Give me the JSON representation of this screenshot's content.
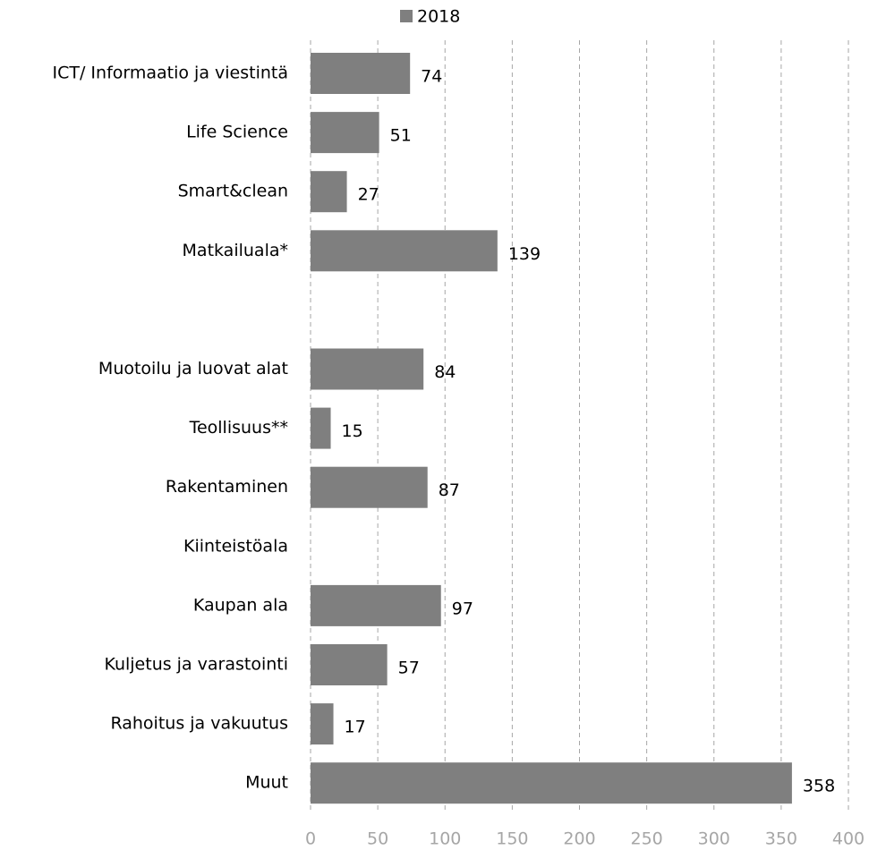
{
  "chart_data": {
    "type": "bar",
    "orientation": "horizontal",
    "categories": [
      "ICT/ Informaatio ja viestintä",
      "Life Science",
      "Smart&clean",
      "Matkailuala*",
      null,
      "Muotoilu ja luovat alat",
      "Teollisuus**",
      "Rakentaminen",
      "Kiinteistöala",
      "Kaupan ala",
      "Kuljetus ja varastointi",
      "Rahoitus ja vakuutus",
      "Muut"
    ],
    "series": [
      {
        "name": "2018",
        "color": "#7f7f7f",
        "values": [
          74,
          51,
          27,
          139,
          null,
          84,
          15,
          87,
          null,
          97,
          57,
          17,
          358
        ]
      }
    ],
    "xlim": [
      0,
      400
    ],
    "xticks": [
      0,
      50,
      100,
      150,
      200,
      250,
      300,
      350,
      400
    ],
    "grid": true,
    "legend": "top"
  }
}
